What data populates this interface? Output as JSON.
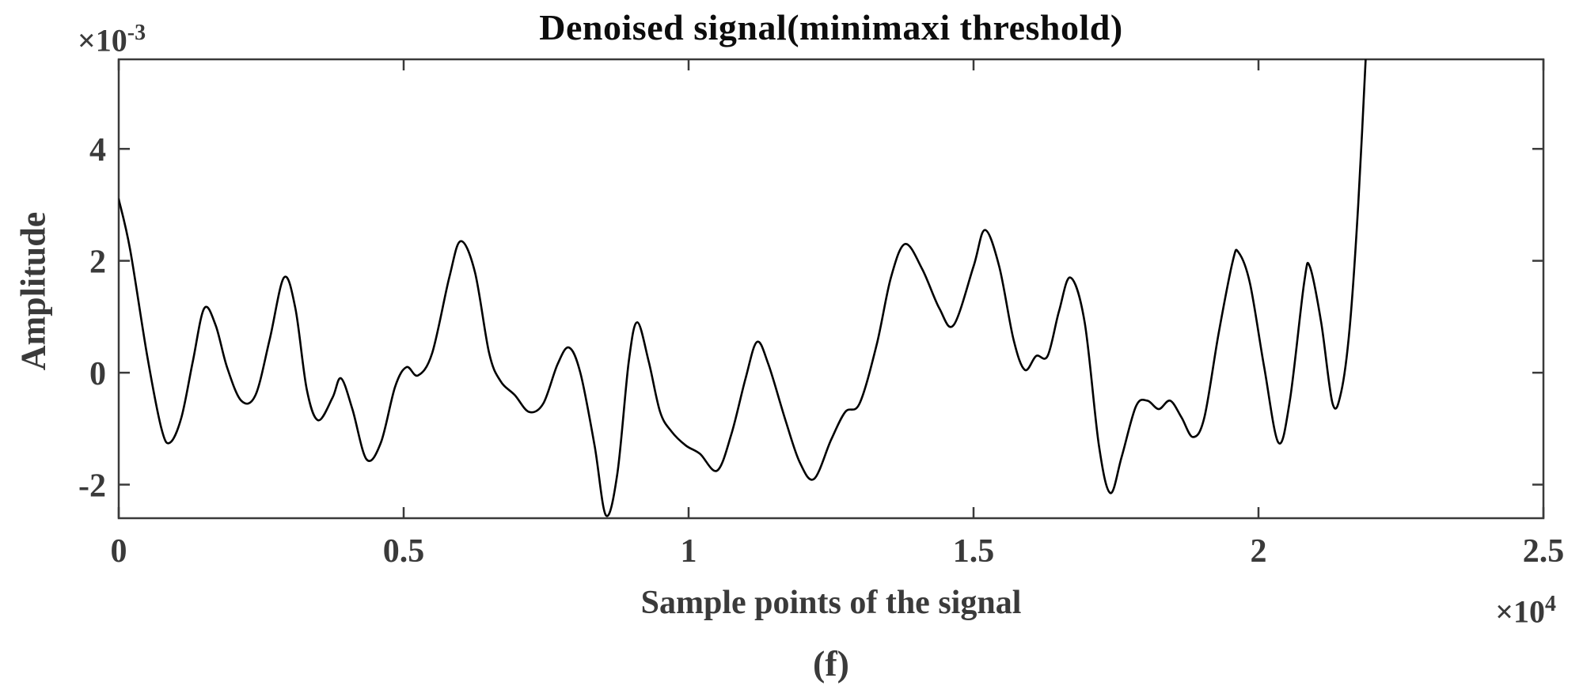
{
  "figure": {
    "title": "Denoised signal(minimaxi threshold)",
    "caption": "(f)"
  },
  "chart_data": {
    "type": "line",
    "title": "Denoised signal(minimaxi threshold)",
    "xlabel": "Sample points of the signal",
    "ylabel": "Amplitude",
    "x_multiplier": {
      "base": "×10",
      "exp": "4"
    },
    "y_multiplier": {
      "base": "×10",
      "exp": "-3"
    },
    "xlim": [
      0,
      2.5
    ],
    "ylim": [
      -2.6,
      5.6
    ],
    "x_ticks": [
      0,
      0.5,
      1,
      1.5,
      2,
      2.5
    ],
    "x_tick_labels": [
      "0",
      "0.5",
      "1",
      "1.5",
      "2",
      "2.5"
    ],
    "y_ticks": [
      -2,
      0,
      2,
      4
    ],
    "y_tick_labels": [
      "-2",
      "0",
      "2",
      "4"
    ],
    "grid": false,
    "legend": null,
    "line_color": "#000000",
    "axis_color": "#3a3a3a",
    "series": [
      {
        "name": "denoised-signal",
        "points": [
          [
            0.0,
            3.1
          ],
          [
            0.02,
            2.2
          ],
          [
            0.05,
            0.3
          ],
          [
            0.075,
            -1.0
          ],
          [
            0.09,
            -1.25
          ],
          [
            0.11,
            -0.8
          ],
          [
            0.13,
            0.2
          ],
          [
            0.15,
            1.15
          ],
          [
            0.17,
            0.85
          ],
          [
            0.19,
            0.1
          ],
          [
            0.215,
            -0.5
          ],
          [
            0.24,
            -0.4
          ],
          [
            0.265,
            0.6
          ],
          [
            0.29,
            1.7
          ],
          [
            0.31,
            1.15
          ],
          [
            0.33,
            -0.3
          ],
          [
            0.35,
            -0.85
          ],
          [
            0.375,
            -0.45
          ],
          [
            0.39,
            -0.1
          ],
          [
            0.41,
            -0.65
          ],
          [
            0.435,
            -1.55
          ],
          [
            0.46,
            -1.25
          ],
          [
            0.485,
            -0.25
          ],
          [
            0.505,
            0.1
          ],
          [
            0.525,
            -0.05
          ],
          [
            0.55,
            0.35
          ],
          [
            0.58,
            1.7
          ],
          [
            0.6,
            2.35
          ],
          [
            0.625,
            1.8
          ],
          [
            0.65,
            0.35
          ],
          [
            0.67,
            -0.15
          ],
          [
            0.695,
            -0.4
          ],
          [
            0.72,
            -0.7
          ],
          [
            0.745,
            -0.55
          ],
          [
            0.77,
            0.15
          ],
          [
            0.79,
            0.45
          ],
          [
            0.81,
            0.0
          ],
          [
            0.835,
            -1.3
          ],
          [
            0.855,
            -2.55
          ],
          [
            0.875,
            -1.8
          ],
          [
            0.895,
            0.2
          ],
          [
            0.91,
            0.9
          ],
          [
            0.93,
            0.2
          ],
          [
            0.95,
            -0.7
          ],
          [
            0.97,
            -1.05
          ],
          [
            0.995,
            -1.3
          ],
          [
            1.02,
            -1.45
          ],
          [
            1.05,
            -1.75
          ],
          [
            1.075,
            -1.1
          ],
          [
            1.1,
            -0.1
          ],
          [
            1.12,
            0.55
          ],
          [
            1.14,
            0.15
          ],
          [
            1.17,
            -0.85
          ],
          [
            1.195,
            -1.6
          ],
          [
            1.22,
            -1.9
          ],
          [
            1.25,
            -1.2
          ],
          [
            1.275,
            -0.7
          ],
          [
            1.3,
            -0.55
          ],
          [
            1.33,
            0.5
          ],
          [
            1.355,
            1.7
          ],
          [
            1.38,
            2.3
          ],
          [
            1.41,
            1.85
          ],
          [
            1.44,
            1.15
          ],
          [
            1.465,
            0.85
          ],
          [
            1.5,
            1.9
          ],
          [
            1.52,
            2.55
          ],
          [
            1.545,
            1.9
          ],
          [
            1.57,
            0.6
          ],
          [
            1.59,
            0.05
          ],
          [
            1.61,
            0.3
          ],
          [
            1.63,
            0.3
          ],
          [
            1.65,
            1.1
          ],
          [
            1.67,
            1.7
          ],
          [
            1.695,
            0.9
          ],
          [
            1.72,
            -1.3
          ],
          [
            1.74,
            -2.15
          ],
          [
            1.76,
            -1.5
          ],
          [
            1.785,
            -0.6
          ],
          [
            1.805,
            -0.5
          ],
          [
            1.825,
            -0.65
          ],
          [
            1.845,
            -0.5
          ],
          [
            1.865,
            -0.8
          ],
          [
            1.885,
            -1.15
          ],
          [
            1.905,
            -0.8
          ],
          [
            1.93,
            0.7
          ],
          [
            1.955,
            2.0
          ],
          [
            1.965,
            2.15
          ],
          [
            1.985,
            1.6
          ],
          [
            2.01,
            0.1
          ],
          [
            2.035,
            -1.25
          ],
          [
            2.055,
            -0.5
          ],
          [
            2.08,
            1.6
          ],
          [
            2.09,
            1.9
          ],
          [
            2.11,
            0.9
          ],
          [
            2.13,
            -0.55
          ],
          [
            2.145,
            -0.35
          ],
          [
            2.16,
            0.8
          ],
          [
            2.175,
            3.0
          ],
          [
            2.19,
            6.0
          ]
        ]
      }
    ]
  }
}
